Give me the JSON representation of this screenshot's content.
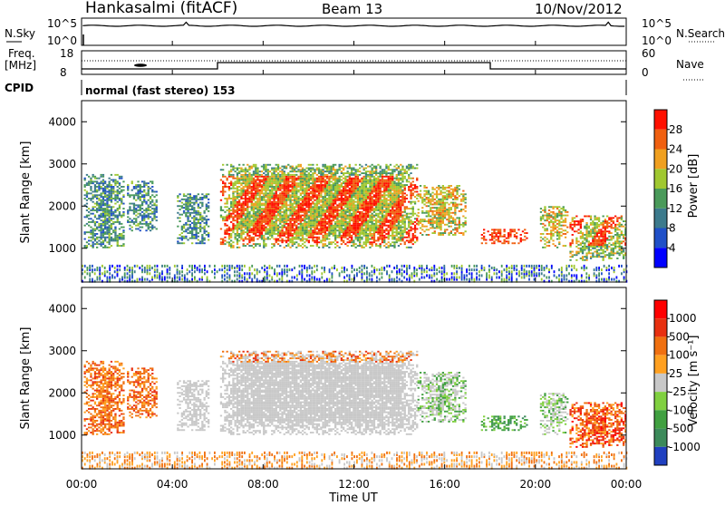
{
  "header": {
    "station": "Hankasalmi (fitACF)",
    "beam": "Beam 13",
    "date": "10/Nov/2012"
  },
  "top_panels": {
    "nsky_label": "N.Sky",
    "nsky_ticks": [
      "10^5",
      "10^0"
    ],
    "nsearch_label": "N.Search",
    "nsearch_ticks": [
      "10^5",
      "10^0"
    ],
    "freq_label": "Freq.",
    "freq_unit": "[MHz]",
    "freq_ticks": [
      "18",
      "8"
    ],
    "nave_label": "Nave",
    "nave_ticks": [
      "60",
      "0"
    ],
    "cpid_label": "CPID",
    "cpid_text": "normal (fast stereo) 153"
  },
  "chart_data": [
    {
      "type": "heatmap",
      "name": "power",
      "ylabel": "Slant Range [km]",
      "ylim": [
        200,
        4500
      ],
      "yticks": [
        "1000",
        "2000",
        "3000",
        "4000"
      ],
      "colorbar_label": "Power [dB]",
      "colorbar_ticks": [
        "4",
        "8",
        "12",
        "16",
        "20",
        "24",
        "28"
      ],
      "colorbar_colors": [
        "#0000ff",
        "#2050c8",
        "#3c7a8c",
        "#4a9a5a",
        "#a0c830",
        "#f0a020",
        "#f06010",
        "#ff1000"
      ]
    },
    {
      "type": "heatmap",
      "name": "velocity",
      "ylabel": "Slant Range [km]",
      "ylim": [
        200,
        4500
      ],
      "yticks": [
        "1000",
        "2000",
        "3000",
        "4000"
      ],
      "colorbar_label": "Velocity [m s⁻¹]",
      "colorbar_ticks": [
        "1000",
        "500",
        "100",
        "25",
        "-25",
        "-100",
        "-500",
        "-1000"
      ],
      "colorbar_colors": [
        "#2040c0",
        "#3c8a5a",
        "#40a040",
        "#80d040",
        "#c8c8c8",
        "#ffa020",
        "#f07010",
        "#e83010",
        "#ff0000"
      ]
    }
  ],
  "xaxis": {
    "label": "Time UT",
    "xlim": [
      0,
      24
    ],
    "ticks": [
      "00:00",
      "04:00",
      "08:00",
      "12:00",
      "16:00",
      "20:00",
      "00:00"
    ]
  }
}
